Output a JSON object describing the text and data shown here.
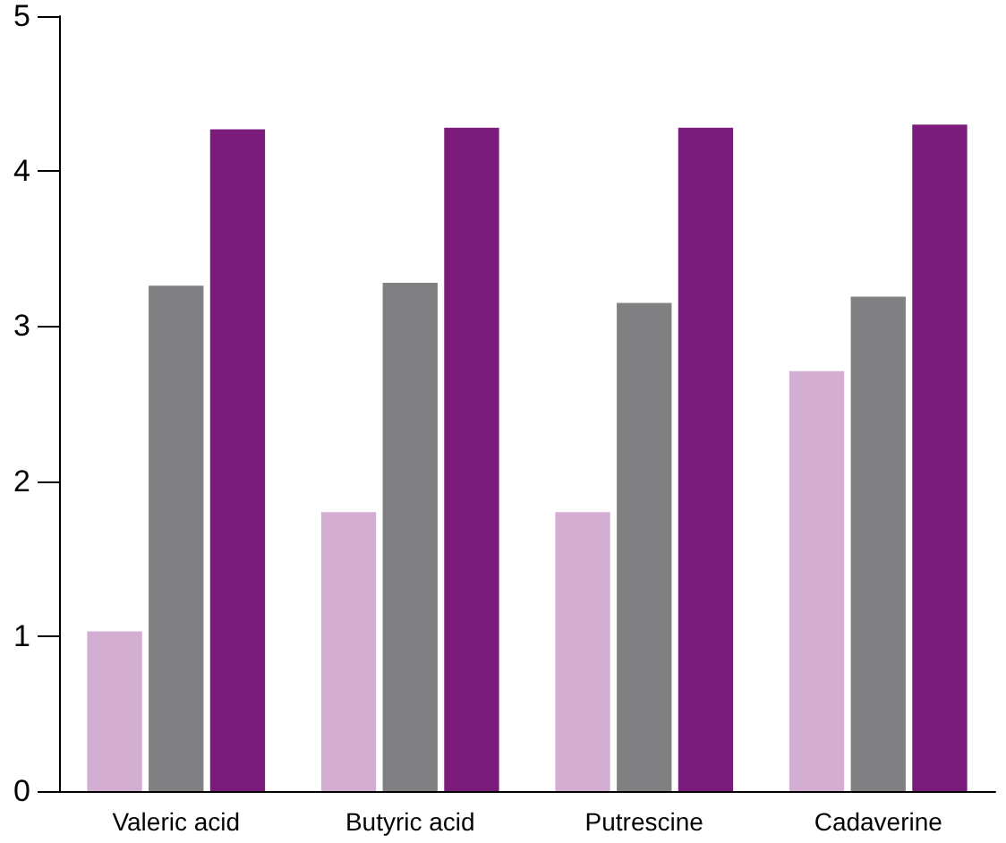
{
  "chart_data": {
    "type": "bar",
    "categories": [
      "Valeric acid",
      "Butyric acid",
      "Putrescine",
      "Cadaverine"
    ],
    "series": [
      {
        "color": "#d4aed2",
        "values": [
          1.03,
          1.8,
          1.8,
          2.71
        ]
      },
      {
        "color": "#808083",
        "values": [
          3.26,
          3.28,
          3.15,
          3.19
        ]
      },
      {
        "color": "#7b1c7c",
        "values": [
          4.27,
          4.28,
          4.28,
          4.3
        ]
      }
    ],
    "ylim": [
      0,
      5
    ],
    "yticks": [
      0,
      1,
      2,
      3,
      4,
      5
    ],
    "grid": false
  }
}
